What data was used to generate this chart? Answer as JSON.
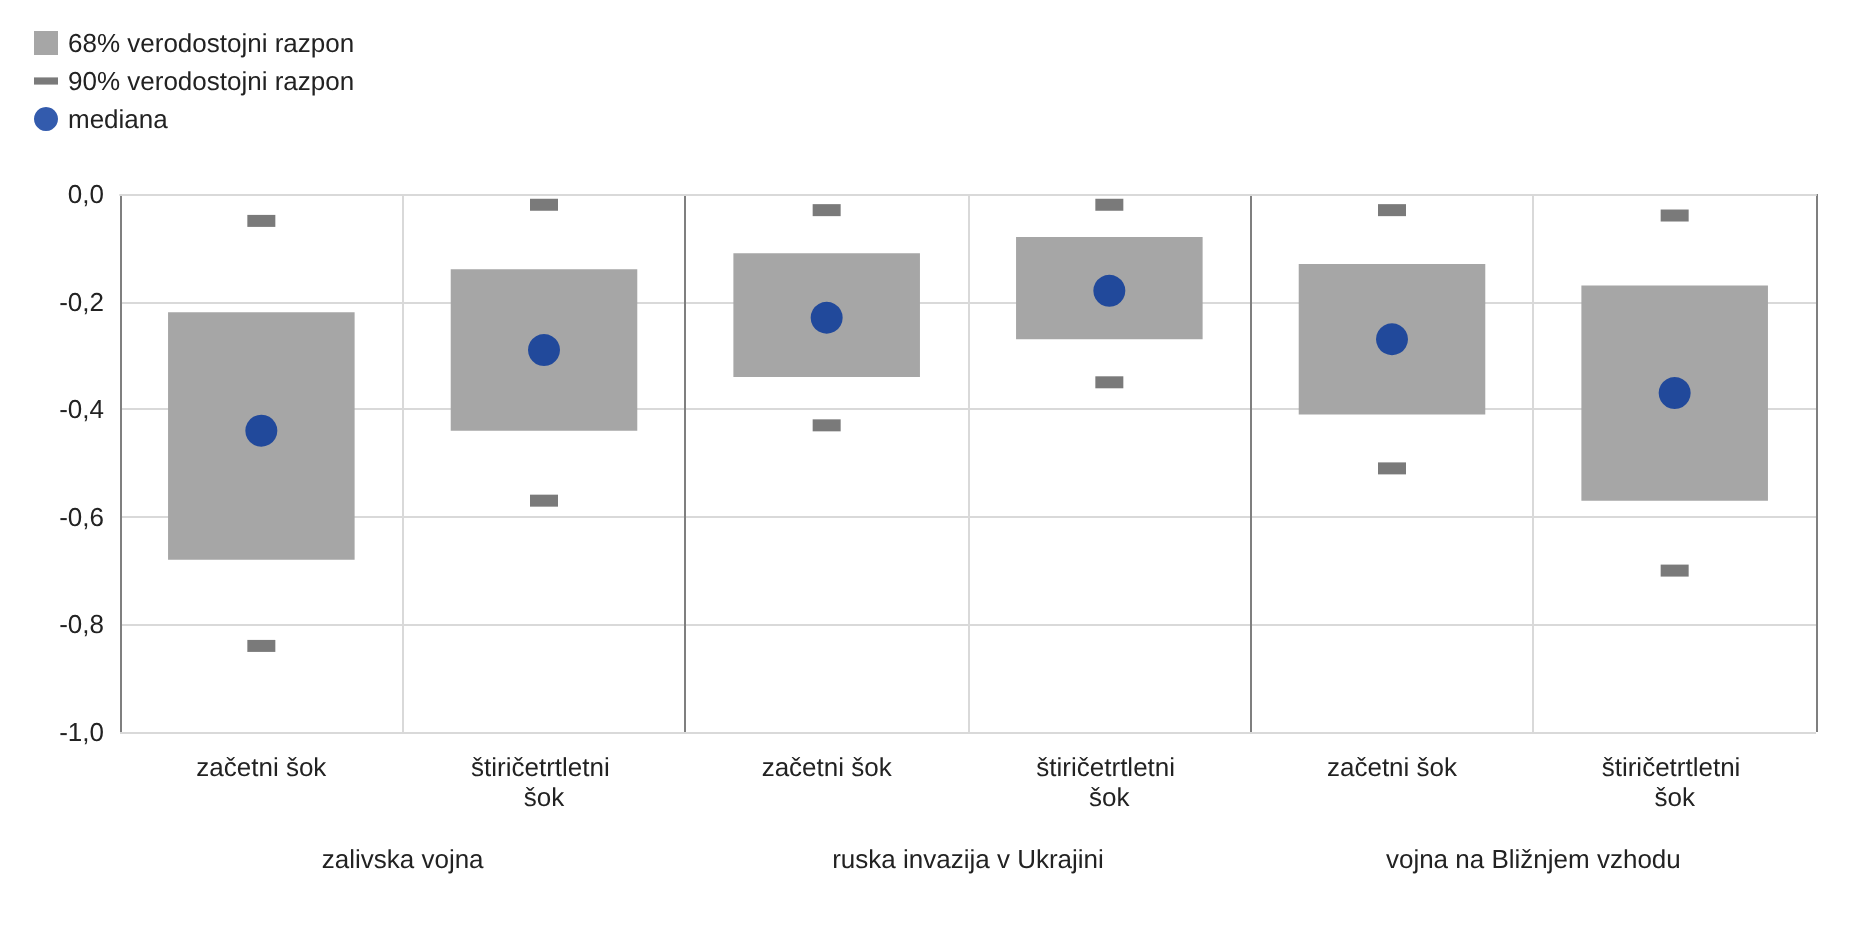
{
  "chart_data": {
    "type": "bar",
    "categories": [
      "začetni šok",
      "štiričetrtletni šok",
      "začetni šok",
      "štiričetrtletni šok",
      "začetni šok",
      "štiričetrtletni šok"
    ],
    "annotations": [
      "zalivska vojna",
      "ruska invazija v Ukrajini",
      "vojna na Bližnjem vzhodu"
    ],
    "series": [
      {
        "name": "68% verodostojni razpon",
        "color": "#a6a6a6",
        "base": [
          -0.68,
          -0.44,
          -0.34,
          -0.27,
          -0.41,
          -0.57
        ],
        "values": [
          0.46,
          0.3,
          0.23,
          0.19,
          0.28,
          0.4
        ]
      },
      {
        "name": "90% verodostojni razpon",
        "type": "scatter",
        "color": "#595959",
        "values": [
          -0.84,
          -0.57,
          -0.43,
          -0.35,
          -0.51,
          -0.7
        ]
      },
      {
        "type": "scatter",
        "color": "#595959",
        "values": [
          -0.05,
          -0.02,
          -0.03,
          -0.02,
          -0.03,
          -0.04
        ]
      },
      {
        "name": "mediana",
        "type": "scatter",
        "color": "#003299",
        "marker": "circle",
        "values": [
          -0.44,
          -0.29,
          -0.23,
          -0.18,
          -0.27,
          -0.37
        ]
      }
    ],
    "ylim": [
      -1,
      0
    ],
    "yticks": [
      {
        "value": 0,
        "label": "0,0"
      },
      {
        "value": -0.2,
        "label": "-0,2"
      },
      {
        "value": -0.4,
        "label": "-0,4"
      },
      {
        "value": -0.6,
        "label": "-0,6"
      },
      {
        "value": -0.8,
        "label": "-0,8"
      },
      {
        "value": -1,
        "label": "-1,0"
      }
    ],
    "grid": true,
    "legend": "top left"
  }
}
